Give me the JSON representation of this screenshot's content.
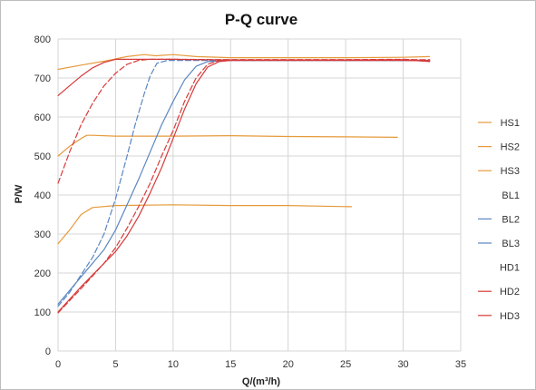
{
  "chart_data": {
    "type": "line",
    "title": "P-Q  curve",
    "xlabel": "Q/(m³/h)",
    "ylabel": "P/W",
    "xlim": [
      0,
      35
    ],
    "ylim": [
      0,
      800
    ],
    "x_ticks": [
      "0",
      "5",
      "10",
      "15",
      "20",
      "25",
      "30",
      "35"
    ],
    "y_ticks": [
      "0",
      "100",
      "200",
      "300",
      "400",
      "500",
      "600",
      "700",
      "800"
    ],
    "grid": true,
    "legend_position": "right",
    "series": [
      {
        "name": "HS1",
        "color": "#e69a3c",
        "dash": "solid",
        "points": [
          [
            0,
            275
          ],
          [
            1,
            310
          ],
          [
            2,
            350
          ],
          [
            3,
            368
          ],
          [
            5,
            373
          ],
          [
            10,
            375
          ],
          [
            15,
            373
          ],
          [
            20,
            373
          ],
          [
            25.5,
            370
          ]
        ]
      },
      {
        "name": "HS2",
        "color": "#e69a3c",
        "dash": "solid",
        "points": [
          [
            0,
            500
          ],
          [
            1,
            525
          ],
          [
            2,
            545
          ],
          [
            2.5,
            553
          ],
          [
            3,
            553
          ],
          [
            5,
            551
          ],
          [
            10,
            551
          ],
          [
            15,
            552
          ],
          [
            20,
            550
          ],
          [
            25,
            549
          ],
          [
            29.5,
            548
          ]
        ]
      },
      {
        "name": "HS3",
        "color": "#e69a3c",
        "dash": "solid",
        "points": [
          [
            0,
            722
          ],
          [
            2,
            733
          ],
          [
            4,
            743
          ],
          [
            6,
            755
          ],
          [
            7.5,
            760
          ],
          [
            8.5,
            757
          ],
          [
            10,
            760
          ],
          [
            12,
            755
          ],
          [
            15,
            752
          ],
          [
            20,
            752
          ],
          [
            25,
            752
          ],
          [
            30,
            753
          ],
          [
            32.3,
            755
          ]
        ]
      },
      {
        "name": "BL1",
        "color": "#ffffff",
        "dash": "solid",
        "points": []
      },
      {
        "name": "BL2",
        "color": "#5a86c0",
        "dash": "dash",
        "points": [
          [
            0,
            115
          ],
          [
            1,
            150
          ],
          [
            2,
            195
          ],
          [
            3,
            240
          ],
          [
            4,
            300
          ],
          [
            5,
            390
          ],
          [
            6,
            500
          ],
          [
            6.7,
            580
          ],
          [
            7.5,
            660
          ],
          [
            8,
            705
          ],
          [
            8.6,
            738
          ],
          [
            9.5,
            745
          ],
          [
            12,
            745
          ],
          [
            20,
            745
          ],
          [
            25,
            745
          ],
          [
            30,
            745
          ],
          [
            32.3,
            745
          ]
        ]
      },
      {
        "name": "BL3",
        "color": "#5a86c0",
        "dash": "solid",
        "points": [
          [
            0,
            120
          ],
          [
            2,
            190
          ],
          [
            4,
            260
          ],
          [
            5,
            310
          ],
          [
            6,
            375
          ],
          [
            7,
            440
          ],
          [
            8,
            510
          ],
          [
            9,
            580
          ],
          [
            10,
            640
          ],
          [
            11,
            695
          ],
          [
            12,
            730
          ],
          [
            13,
            742
          ],
          [
            15,
            745
          ],
          [
            20,
            745
          ],
          [
            25,
            745
          ],
          [
            30,
            745
          ],
          [
            32.3,
            745
          ]
        ]
      },
      {
        "name": "HD1",
        "color": "#ffffff",
        "dash": "solid",
        "points": []
      },
      {
        "name": "HD2",
        "color": "#d73a3a",
        "dash": "dash",
        "points": [
          [
            0,
            430
          ],
          [
            1,
            510
          ],
          [
            2,
            580
          ],
          [
            3,
            635
          ],
          [
            4,
            680
          ],
          [
            5,
            712
          ],
          [
            6,
            735
          ],
          [
            7,
            745
          ],
          [
            8,
            748
          ],
          [
            10,
            748
          ],
          [
            15,
            747
          ],
          [
            20,
            747
          ],
          [
            25,
            747
          ],
          [
            30,
            748
          ],
          [
            32.3,
            745
          ]
        ]
      },
      {
        "name": "HD3",
        "color": "#d73a3a",
        "dash": "solid",
        "points": [
          [
            0,
            655
          ],
          [
            1,
            680
          ],
          [
            2,
            705
          ],
          [
            3,
            726
          ],
          [
            4,
            740
          ],
          [
            5,
            748
          ],
          [
            10,
            748
          ],
          [
            15,
            746
          ],
          [
            20,
            746
          ],
          [
            25,
            746
          ],
          [
            30,
            747
          ],
          [
            32.3,
            742
          ]
        ]
      },
      {
        "name": "",
        "color": "#d73a3a",
        "dash": "dash",
        "points": [
          [
            0,
            98
          ],
          [
            2,
            160
          ],
          [
            4,
            225
          ],
          [
            5,
            265
          ],
          [
            6,
            315
          ],
          [
            7,
            370
          ],
          [
            8,
            430
          ],
          [
            9,
            500
          ],
          [
            10,
            565
          ],
          [
            11,
            640
          ],
          [
            12,
            700
          ],
          [
            13,
            735
          ],
          [
            14,
            745
          ],
          [
            15,
            747
          ],
          [
            20,
            747
          ],
          [
            25,
            747
          ],
          [
            30,
            747
          ],
          [
            32.3,
            747
          ]
        ]
      },
      {
        "name": "",
        "color": "#d73a3a",
        "dash": "solid",
        "points": [
          [
            0,
            100
          ],
          [
            2,
            165
          ],
          [
            4,
            225
          ],
          [
            5,
            255
          ],
          [
            6,
            295
          ],
          [
            7,
            345
          ],
          [
            8,
            405
          ],
          [
            9,
            470
          ],
          [
            10,
            545
          ],
          [
            11,
            620
          ],
          [
            12,
            685
          ],
          [
            13,
            728
          ],
          [
            14,
            742
          ],
          [
            15,
            745
          ],
          [
            20,
            745
          ],
          [
            25,
            745
          ],
          [
            30,
            745
          ],
          [
            32.3,
            744
          ]
        ]
      }
    ]
  }
}
